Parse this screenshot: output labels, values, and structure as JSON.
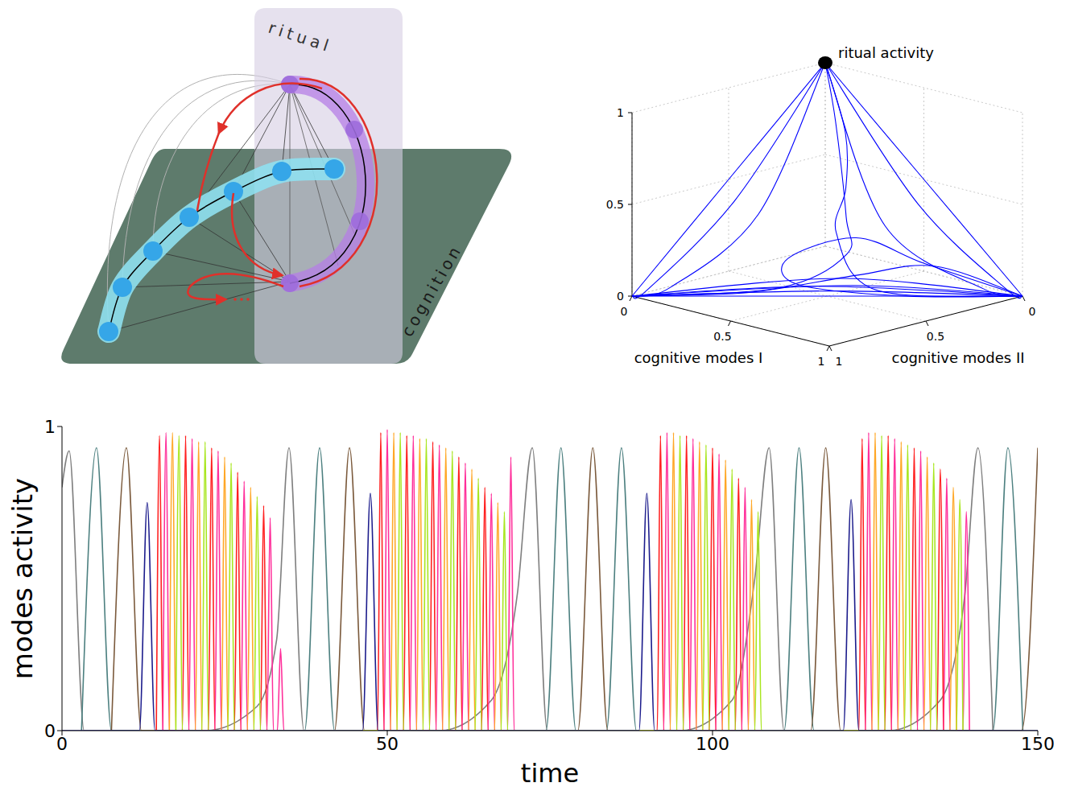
{
  "diagram": {
    "labels": [
      "ritual",
      "cognition"
    ]
  },
  "chart_data": [
    {
      "type": "trajectory3d",
      "xlabel": "cognitive modes I",
      "ylabel": "cognitive modes II",
      "xlim": [
        0,
        1
      ],
      "xticks": [
        0,
        0.5,
        1
      ],
      "ylim": [
        0,
        1
      ],
      "yticks": [
        0,
        0.5,
        1
      ],
      "zlim": [
        0,
        1
      ],
      "zticks": [
        0,
        0.5,
        1
      ],
      "color": "#0000ff",
      "points": [
        {
          "label": "ritual activity",
          "x": 0,
          "y": 0,
          "z": 1
        }
      ],
      "trajectories": [
        [
          [
            0,
            0,
            1
          ],
          [
            0,
            0.5,
            0.5
          ],
          [
            0,
            1,
            0
          ]
        ],
        [
          [
            0,
            0,
            1
          ],
          [
            0.08,
            0.55,
            0.42
          ],
          [
            0.03,
            0.95,
            0.03
          ],
          [
            0,
            1,
            0
          ]
        ],
        [
          [
            0,
            0,
            1
          ],
          [
            0.15,
            0.5,
            0.35
          ],
          [
            0.1,
            0.9,
            0.05
          ],
          [
            0,
            1,
            0
          ]
        ],
        [
          [
            0,
            0,
            1
          ],
          [
            0.5,
            0,
            0.5
          ],
          [
            1,
            0,
            0
          ]
        ],
        [
          [
            0,
            0,
            1
          ],
          [
            0.55,
            0.08,
            0.4
          ],
          [
            0.95,
            0.03,
            0.03
          ],
          [
            1,
            0,
            0
          ]
        ],
        [
          [
            0,
            0,
            1
          ],
          [
            0.5,
            0.2,
            0.3
          ],
          [
            0.9,
            0.1,
            0.04
          ],
          [
            1,
            0,
            0
          ]
        ],
        [
          [
            1,
            0,
            0
          ],
          [
            0.6,
            0.35,
            0.02
          ],
          [
            0.35,
            0.3,
            0.25
          ],
          [
            0.3,
            0.2,
            0.45
          ],
          [
            0.2,
            0.1,
            0.7
          ],
          [
            0,
            0,
            1
          ]
        ],
        [
          [
            0,
            1,
            0
          ],
          [
            0.35,
            0.6,
            0.03
          ],
          [
            0.5,
            0.4,
            0.2
          ],
          [
            0.4,
            0.3,
            0.35
          ],
          [
            0.15,
            0.1,
            0.75
          ],
          [
            0,
            0,
            1
          ]
        ],
        [
          [
            0,
            1,
            0
          ],
          [
            0.3,
            0.7,
            0.02
          ],
          [
            0.55,
            0.4,
            0.1
          ],
          [
            0.75,
            0.2,
            0.15
          ],
          [
            1,
            0,
            0
          ]
        ],
        [
          [
            1,
            0,
            0
          ],
          [
            0.7,
            0.3,
            0
          ],
          [
            0.4,
            0.55,
            0.05
          ],
          [
            0.3,
            0.5,
            0.15
          ],
          [
            0.45,
            0.3,
            0.25
          ],
          [
            0.7,
            0.2,
            0.15
          ],
          [
            1,
            0,
            0
          ]
        ],
        [
          [
            0,
            1,
            0
          ],
          [
            0.5,
            0.5,
            0
          ],
          [
            1,
            0,
            0
          ]
        ],
        [
          [
            0,
            1,
            0
          ],
          [
            0.5,
            0.47,
            0.02
          ],
          [
            1,
            0,
            0
          ]
        ],
        [
          [
            0,
            1,
            0
          ],
          [
            0.45,
            0.5,
            0.04
          ],
          [
            1,
            0,
            0
          ]
        ],
        [
          [
            1,
            0,
            0
          ],
          [
            0.55,
            0.42,
            0.05
          ],
          [
            0,
            1,
            0
          ]
        ],
        [
          [
            0,
            1,
            0
          ],
          [
            0.5,
            0.44,
            0.08
          ],
          [
            1,
            0,
            0
          ]
        ]
      ]
    },
    {
      "type": "line",
      "xlabel": "time",
      "ylabel": "modes activity",
      "xlim": [
        0,
        150
      ],
      "xticks": [
        0,
        50,
        100,
        150
      ],
      "ylim": [
        0,
        1
      ],
      "yticks": [
        0,
        1
      ],
      "grid": false,
      "series": [
        {
          "color": "#7f7f7f",
          "x": [
            0,
            1.1,
            3.4,
            22,
            30,
            33,
            34.9,
            37.2,
            58,
            66,
            70,
            72.3,
            74.6,
            95,
            103,
            106.5,
            108.7,
            111,
            127,
            135,
            138.8,
            140.8,
            143.1
          ],
          "values": [
            0.8,
            0.92,
            0,
            0,
            0.08,
            0.3,
            0.93,
            0,
            0,
            0.1,
            0.45,
            0.93,
            0,
            0,
            0.1,
            0.5,
            0.93,
            0,
            0,
            0.1,
            0.45,
            0.93,
            0
          ]
        },
        {
          "color": "#4d8080",
          "x": [
            3,
            5.3,
            7.6,
            37.3,
            39.6,
            41.9,
            74.4,
            76.7,
            79,
            83.7,
            86,
            88.3,
            111,
            113.3,
            115.6,
            143.1,
            145.4,
            147.7
          ],
          "values": [
            0,
            0.93,
            0,
            0,
            0.93,
            0,
            0,
            0.93,
            0,
            0,
            0.93,
            0,
            0,
            0.93,
            0,
            0,
            0.93,
            0
          ]
        },
        {
          "color": "#7b5a3c",
          "x": [
            7.6,
            9.9,
            12.2,
            41.9,
            44.2,
            46.5,
            79.3,
            81.6,
            83.9,
            115.1,
            117.4,
            119.7,
            147.5,
            150
          ],
          "values": [
            0,
            0.93,
            0,
            0,
            0.93,
            0,
            0,
            0.93,
            0,
            0,
            0.93,
            0,
            0,
            0.93
          ]
        },
        {
          "color": "#ff1f1f",
          "x": [
            14.5,
            15,
            15.5,
            18.5,
            19,
            19.5,
            22.5,
            23,
            23.5,
            26.5,
            27,
            27.5,
            30.5,
            31,
            31.5,
            48.5,
            49,
            49.5,
            52.5,
            53,
            53.5,
            56.5,
            57,
            57.5,
            60.5,
            61,
            61.5,
            64.5,
            65,
            65.5,
            91.5,
            92,
            92.5,
            95.5,
            96,
            96.5,
            99.5,
            100,
            100.5,
            103.5,
            104,
            104.5,
            122.5,
            123,
            123.5,
            126.5,
            127,
            127.5,
            130.5,
            131,
            131.5,
            134.5,
            135,
            135.5
          ],
          "values": [
            0,
            0.97,
            0,
            0,
            0.97,
            0,
            0,
            0.93,
            0,
            0,
            0.85,
            0,
            0,
            0.74,
            0,
            0,
            0.98,
            0,
            0,
            0.97,
            0,
            0,
            0.95,
            0,
            0,
            0.9,
            0,
            0,
            0.8,
            0,
            0,
            0.97,
            0,
            0,
            0.97,
            0,
            0,
            0.93,
            0,
            0,
            0.83,
            0,
            0,
            0.96,
            0,
            0,
            0.97,
            0,
            0,
            0.93,
            0,
            0,
            0.86,
            0
          ]
        },
        {
          "color": "#ff2e9a",
          "x": [
            15.5,
            16,
            16.5,
            19.5,
            20,
            20.5,
            23.5,
            24,
            24.5,
            27.5,
            28,
            28.5,
            31.5,
            32,
            32.5,
            33.1,
            33.6,
            34.1,
            49.5,
            50,
            50.5,
            53.5,
            54,
            54.5,
            57.5,
            58,
            58.5,
            61.5,
            62,
            62.5,
            65.5,
            66,
            66.5,
            68.5,
            69,
            69.5,
            92.5,
            93,
            93.5,
            96.5,
            97,
            97.5,
            100.5,
            101,
            101.5,
            104.5,
            105,
            105.5,
            123.5,
            124,
            124.5,
            127.5,
            128,
            128.5,
            131.5,
            132,
            132.5,
            135.5,
            136,
            136.5,
            138.5,
            139,
            139.5
          ],
          "values": [
            0,
            0.98,
            0,
            0,
            0.96,
            0,
            0,
            0.92,
            0,
            0,
            0.82,
            0,
            0,
            0.7,
            0,
            0,
            0.27,
            0,
            0,
            0.99,
            0,
            0,
            0.97,
            0,
            0,
            0.94,
            0,
            0,
            0.88,
            0,
            0,
            0.78,
            0,
            0,
            0.9,
            0,
            0,
            0.98,
            0,
            0,
            0.96,
            0,
            0,
            0.91,
            0,
            0,
            0.8,
            0,
            0,
            0.98,
            0,
            0,
            0.96,
            0,
            0,
            0.92,
            0,
            0,
            0.83,
            0,
            0,
            0.72,
            0
          ]
        },
        {
          "color": "#ffa726",
          "x": [
            16.5,
            17,
            17.5,
            20.5,
            21,
            21.5,
            24.5,
            25,
            25.5,
            28.5,
            29,
            29.5,
            50.5,
            51,
            51.5,
            54.5,
            55,
            55.5,
            58.5,
            59,
            59.5,
            62.5,
            63,
            63.5,
            66.5,
            67,
            67.5,
            93.5,
            94,
            94.5,
            97.5,
            98,
            98.5,
            101.5,
            102,
            102.5,
            105.5,
            106,
            106.5,
            124.5,
            125,
            125.5,
            128.5,
            129,
            129.5,
            132.5,
            133,
            133.5,
            136.5,
            137,
            137.5
          ],
          "values": [
            0,
            0.98,
            0,
            0,
            0.95,
            0,
            0,
            0.9,
            0,
            0,
            0.8,
            0,
            0,
            0.98,
            0,
            0,
            0.96,
            0,
            0,
            0.93,
            0,
            0,
            0.86,
            0,
            0,
            0.75,
            0,
            0,
            0.98,
            0,
            0,
            0.95,
            0,
            0,
            0.89,
            0,
            0,
            0.76,
            0,
            0,
            0.98,
            0,
            0,
            0.95,
            0,
            0,
            0.9,
            0,
            0,
            0.8,
            0
          ]
        },
        {
          "color": "#a8e61e",
          "x": [
            17.5,
            18,
            18.5,
            21.5,
            22,
            22.5,
            25.5,
            26,
            26.5,
            29.5,
            30,
            30.5,
            51.5,
            52,
            52.5,
            55.5,
            56,
            56.5,
            59.5,
            60,
            60.5,
            63.5,
            64,
            64.5,
            67.5,
            68,
            68.5,
            94.5,
            95,
            95.5,
            98.5,
            99,
            99.5,
            102.5,
            103,
            103.5,
            106.5,
            107,
            107.5,
            125.5,
            126,
            126.5,
            129.5,
            130,
            130.5,
            133.5,
            134,
            134.5,
            137.5,
            138,
            138.5
          ],
          "values": [
            0,
            0.97,
            0,
            0,
            0.95,
            0,
            0,
            0.88,
            0,
            0,
            0.77,
            0,
            0,
            0.98,
            0,
            0,
            0.96,
            0,
            0,
            0.92,
            0,
            0,
            0.83,
            0,
            0,
            0.72,
            0,
            0,
            0.97,
            0,
            0,
            0.94,
            0,
            0,
            0.86,
            0,
            0,
            0.72,
            0,
            0,
            0.97,
            0,
            0,
            0.94,
            0,
            0,
            0.88,
            0,
            0,
            0.76,
            0
          ]
        },
        {
          "color": "#1c1c8c",
          "x": [
            0,
            11.9,
            13.1,
            14.3,
            46.2,
            47.4,
            48.6,
            88.7,
            89.9,
            91.1,
            120.1,
            121.3,
            122.5,
            150
          ],
          "values": [
            0,
            0,
            0.75,
            0,
            0,
            0.78,
            0,
            0,
            0.78,
            0,
            0,
            0.76,
            0,
            0
          ]
        }
      ]
    }
  ]
}
